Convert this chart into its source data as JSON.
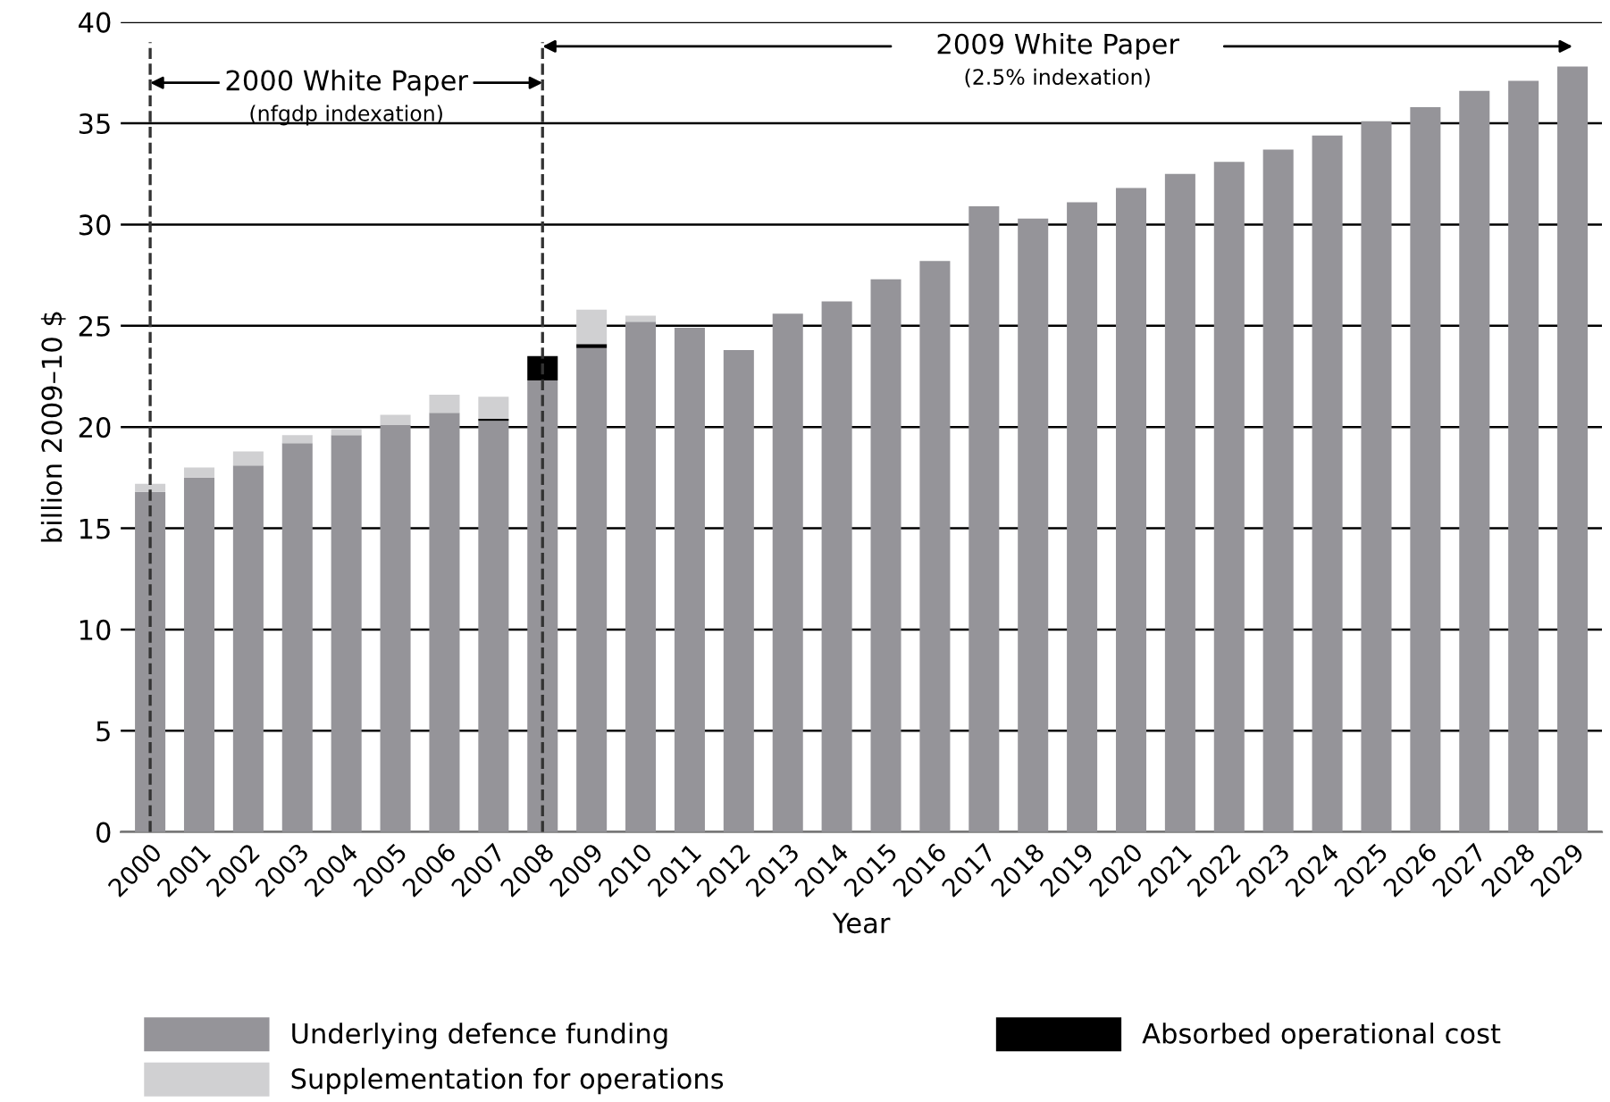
{
  "chart_data": {
    "type": "bar",
    "stacked": true,
    "xlabel": "Year",
    "ylabel": "billion 2009–10 $",
    "categories": [
      "2000",
      "2001",
      "2002",
      "2003",
      "2004",
      "2005",
      "2006",
      "2007",
      "2008",
      "2009",
      "2010",
      "2011",
      "2012",
      "2013",
      "2014",
      "2015",
      "2016",
      "2017",
      "2018",
      "2019",
      "2020",
      "2021",
      "2022",
      "2023",
      "2024",
      "2025",
      "2026",
      "2027",
      "2028",
      "2029"
    ],
    "series": [
      {
        "name": "Underlying defence funding",
        "color": "#959499",
        "values": [
          16.8,
          17.5,
          18.1,
          19.2,
          19.6,
          20.1,
          20.7,
          20.3,
          22.3,
          23.9,
          25.2,
          24.9,
          23.8,
          25.6,
          26.2,
          27.3,
          28.2,
          30.9,
          30.3,
          31.1,
          31.8,
          32.5,
          33.1,
          33.7,
          34.4,
          35.1,
          35.8,
          36.6,
          37.1,
          37.8
        ]
      },
      {
        "name": "Absorbed operational cost",
        "color": "#000000",
        "values": [
          null,
          null,
          null,
          null,
          null,
          null,
          null,
          0.1,
          1.2,
          0.2,
          null,
          null,
          null,
          null,
          null,
          null,
          null,
          null,
          null,
          null,
          null,
          null,
          null,
          null,
          null,
          null,
          null,
          null,
          null,
          null
        ]
      },
      {
        "name": "Supplementation for operations",
        "color": "#d0d0d2",
        "values": [
          0.4,
          0.5,
          0.7,
          0.4,
          0.3,
          0.5,
          0.9,
          1.1,
          null,
          1.7,
          0.3,
          null,
          null,
          null,
          null,
          null,
          null,
          null,
          null,
          null,
          null,
          null,
          null,
          null,
          null,
          null,
          null,
          null,
          null,
          null
        ]
      }
    ],
    "ylim": [
      0,
      40
    ],
    "yticks": [
      0,
      5,
      10,
      15,
      20,
      25,
      30,
      35,
      40
    ],
    "grid": "y",
    "legend": "bottom",
    "ref_lines": [
      {
        "axis": "x",
        "value": "2000",
        "line_style": "dashed",
        "color": "#333333"
      },
      {
        "axis": "x",
        "value": "2008",
        "line_style": "dashed",
        "color": "#333333"
      }
    ],
    "annotations": [
      "2000 White Paper",
      "(nfgdp indexation)",
      "2009 White Paper",
      "(2.5% indexation)"
    ]
  }
}
